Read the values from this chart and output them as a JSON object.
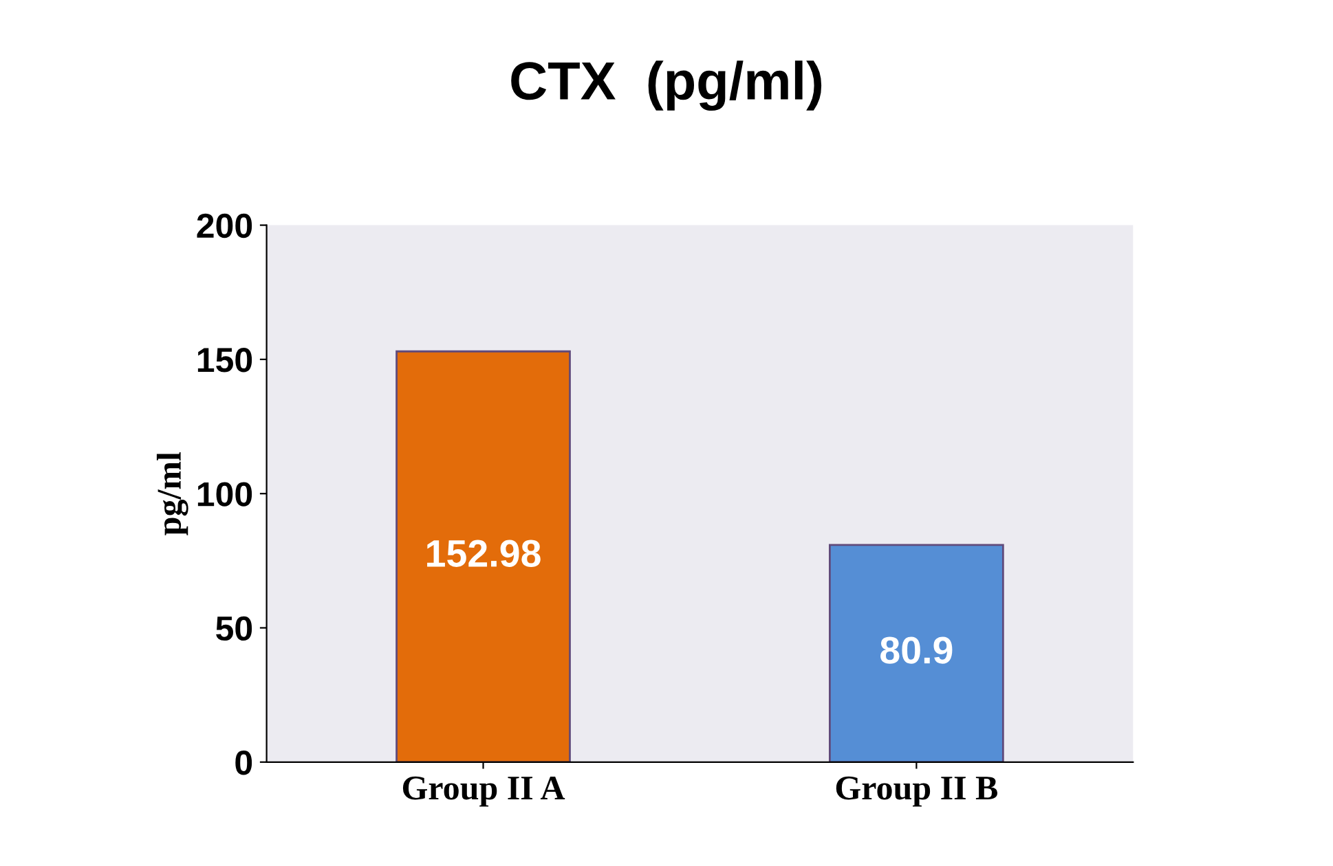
{
  "chart_data": {
    "type": "bar",
    "title": "CTX  (pg/ml)",
    "ylabel": "pg/ml",
    "categories": [
      "Group II A",
      "Group II B"
    ],
    "values": [
      152.98,
      80.9
    ],
    "colors": [
      "#e36c0a",
      "#558ed5"
    ],
    "ylim": [
      0,
      200
    ],
    "yticks": [
      0,
      50,
      100,
      150,
      200
    ],
    "data_labels": true,
    "grid": false
  }
}
